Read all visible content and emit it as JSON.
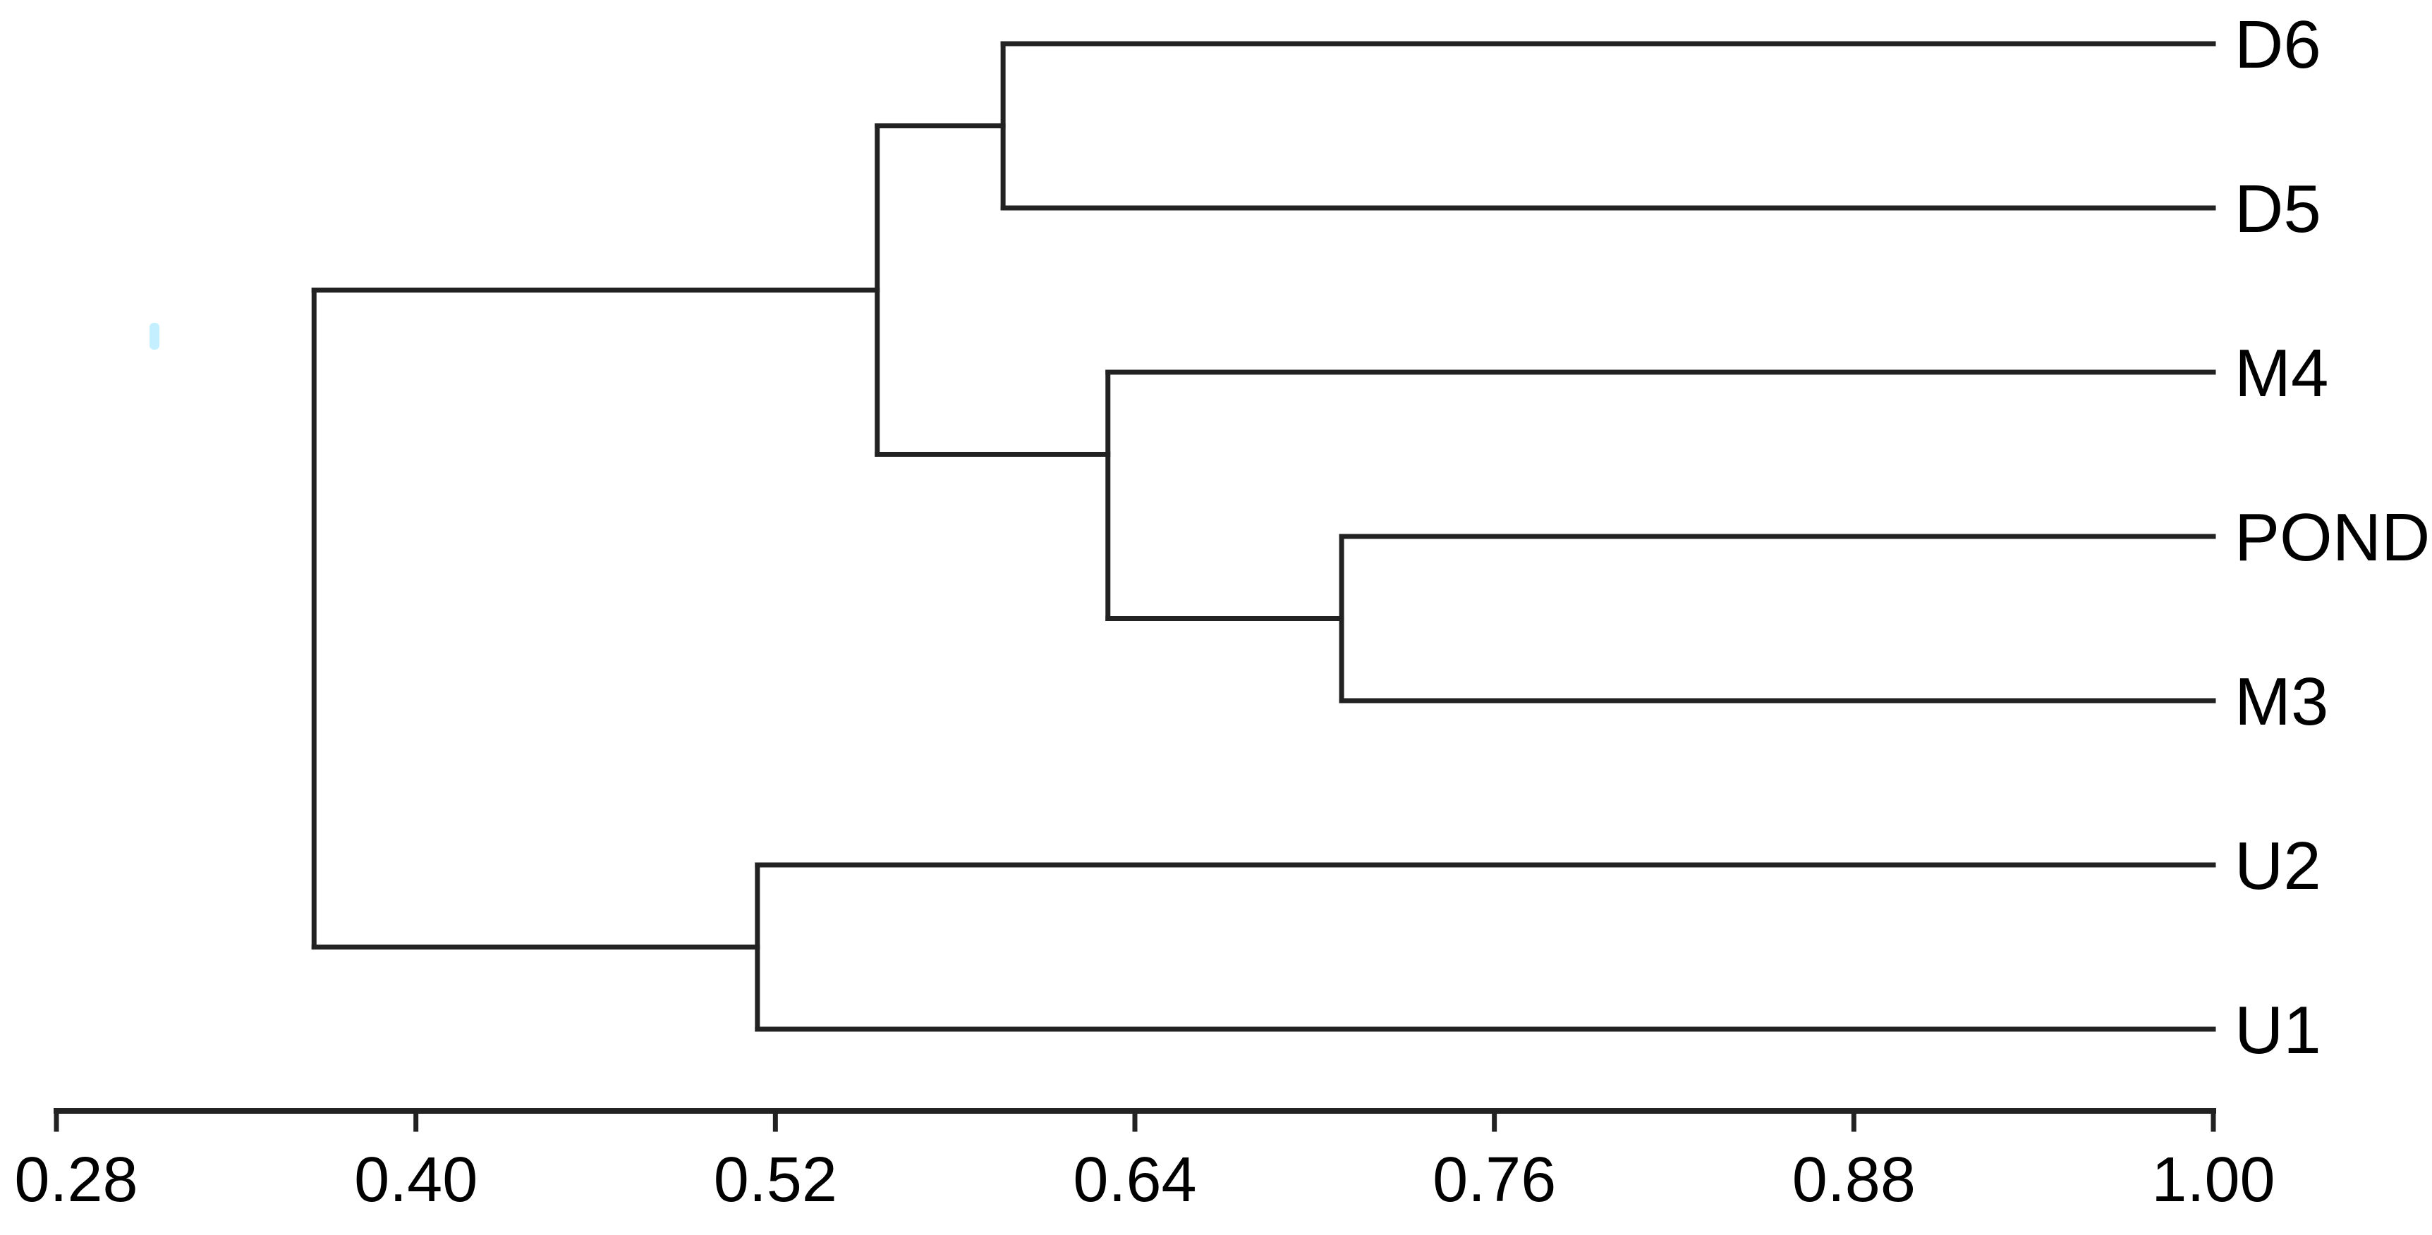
{
  "figure": {
    "background_color": "#ffffff",
    "line_color": "#222222",
    "text_color": "#000000",
    "artifact_color": "#baecff"
  },
  "chart_data": {
    "type": "dendrogram",
    "orientation": "horizontal_leaves_right",
    "title": "",
    "xlabel": "",
    "ylabel": "",
    "leaves": [
      "D6",
      "D5",
      "M4",
      "POND",
      "M3",
      "U2",
      "U1"
    ],
    "leaf_similarity": 1.0,
    "axis": {
      "position": "bottom",
      "range": [
        0.28,
        1.0
      ],
      "ticks": [
        "0.28",
        "0.40",
        "0.52",
        "0.64",
        "0.76",
        "0.88",
        "1.00"
      ],
      "tick_values": [
        0.28,
        0.4,
        0.52,
        0.64,
        0.76,
        0.88,
        1.0
      ],
      "grid": false
    },
    "merges": [
      {
        "members": [
          "D6",
          "D5"
        ],
        "similarity": 0.596
      },
      {
        "members": [
          "POND",
          "M3"
        ],
        "similarity": 0.709
      },
      {
        "members": [
          "M4",
          "POND",
          "M3"
        ],
        "similarity": 0.631
      },
      {
        "members": [
          "D6",
          "D5",
          "M4",
          "POND",
          "M3"
        ],
        "similarity": 0.554
      },
      {
        "members": [
          "U2",
          "U1"
        ],
        "similarity": 0.514
      },
      {
        "members": [
          "D6",
          "D5",
          "M4",
          "POND",
          "M3",
          "U2",
          "U1"
        ],
        "similarity": 0.366
      }
    ],
    "tree": {
      "similarity": 0.366,
      "children": [
        {
          "similarity": 0.554,
          "children": [
            {
              "similarity": 0.596,
              "children": [
                {
                  "leaf": "D6"
                },
                {
                  "leaf": "D5"
                }
              ]
            },
            {
              "similarity": 0.631,
              "children": [
                {
                  "leaf": "M4"
                },
                {
                  "similarity": 0.709,
                  "children": [
                    {
                      "leaf": "POND"
                    },
                    {
                      "leaf": "M3"
                    }
                  ]
                }
              ]
            }
          ]
        },
        {
          "similarity": 0.514,
          "children": [
            {
              "leaf": "U2"
            },
            {
              "leaf": "U1"
            }
          ]
        }
      ]
    }
  }
}
